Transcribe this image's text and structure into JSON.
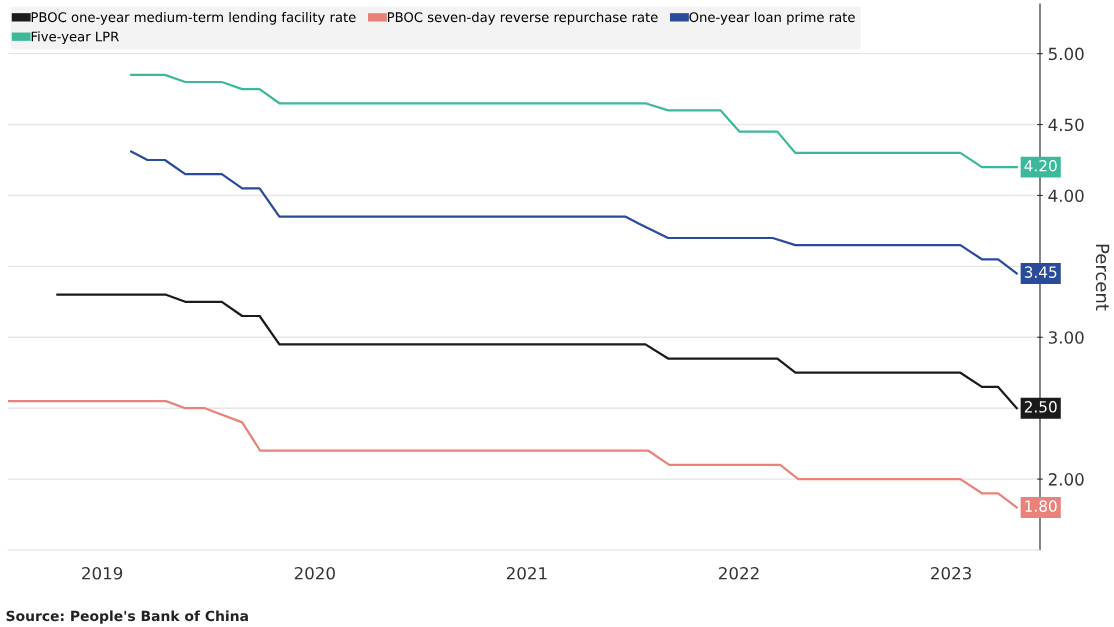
{
  "chart_data": {
    "type": "line",
    "ylabel": "Percent",
    "annotations": [
      "Source: People's Bank of China"
    ],
    "xlim": [
      "2019-01-20",
      "2023-12-01"
    ],
    "xticks": [
      {
        "value": "2019-07-01",
        "label": "2019"
      },
      {
        "value": "2020-07-01",
        "label": "2020"
      },
      {
        "value": "2021-07-01",
        "label": "2021"
      },
      {
        "value": "2022-07-01",
        "label": "2022"
      },
      {
        "value": "2023-07-01",
        "label": "2023"
      }
    ],
    "ylim": [
      1.5,
      5.35
    ],
    "yticks": [
      {
        "value": 2,
        "label": "2.00"
      },
      {
        "value": 2.5,
        "label": null
      },
      {
        "value": 3,
        "label": "3.00"
      },
      {
        "value": 3.5,
        "label": null
      },
      {
        "value": 4,
        "label": "4.00"
      },
      {
        "value": 4.5,
        "label": "4.50"
      },
      {
        "value": 5,
        "label": "5.00"
      }
    ],
    "grid": "y",
    "legend": "top left",
    "marker": "none",
    "line_style": "solid",
    "series": [
      {
        "name": "PBOC one-year medium-term lending facility rate",
        "color": "#1a1a1a",
        "x": [
          "2019-04-15",
          "2019-10-19",
          "2019-11-21",
          "2020-01-23",
          "2020-02-27",
          "2020-03-28",
          "2020-05-01",
          "2022-01-21",
          "2022-03-01",
          "2022-09-05",
          "2022-10-06",
          "2023-07-17",
          "2023-08-23",
          "2023-09-20",
          "2023-10-22"
        ],
        "values": [
          3.3,
          3.3,
          3.25,
          3.25,
          3.15,
          3.15,
          2.95,
          2.95,
          2.85,
          2.85,
          2.75,
          2.75,
          2.65,
          2.65,
          2.5
        ],
        "value_labels": [
          null,
          null,
          null,
          null,
          null,
          null,
          null,
          null,
          null,
          null,
          null,
          null,
          null,
          null,
          "2.50"
        ]
      },
      {
        "name": "PBOC seven-day reverse repurchase rate",
        "color": "#e8827a",
        "x": [
          "2019-01-20",
          "2019-10-19",
          "2019-11-21",
          "2019-12-25",
          "2020-02-27",
          "2020-03-29",
          "2022-01-26",
          "2022-03-03",
          "2022-09-10",
          "2022-10-11",
          "2023-07-17",
          "2023-08-23",
          "2023-09-20",
          "2023-10-22"
        ],
        "values": [
          2.55,
          2.55,
          2.5,
          2.5,
          2.4,
          2.2,
          2.2,
          2.1,
          2.1,
          2.0,
          2.0,
          1.9,
          1.9,
          1.8
        ],
        "value_labels": [
          null,
          null,
          null,
          null,
          null,
          null,
          null,
          null,
          null,
          null,
          null,
          null,
          null,
          "1.80"
        ]
      },
      {
        "name": "One-year loan prime rate",
        "color": "#2a4a9a",
        "x": [
          "2019-08-20",
          "2019-09-17",
          "2019-10-17",
          "2019-11-21",
          "2020-01-23",
          "2020-02-27",
          "2020-03-28",
          "2020-05-01",
          "2021-12-18",
          "2022-01-10",
          "2022-03-01",
          "2022-08-28",
          "2022-10-06",
          "2023-07-17",
          "2023-08-23",
          "2023-09-20",
          "2023-10-22"
        ],
        "values": [
          4.31,
          4.25,
          4.25,
          4.15,
          4.15,
          4.05,
          4.05,
          3.85,
          3.85,
          3.8,
          3.7,
          3.7,
          3.65,
          3.65,
          3.55,
          3.55,
          3.45
        ],
        "value_labels": [
          null,
          null,
          null,
          null,
          null,
          null,
          null,
          null,
          null,
          null,
          null,
          null,
          null,
          null,
          null,
          null,
          "3.45"
        ]
      },
      {
        "name": "Five-year LPR",
        "color": "#3cb89a",
        "x": [
          "2019-08-20",
          "2019-10-17",
          "2019-11-21",
          "2020-01-23",
          "2020-02-27",
          "2020-03-28",
          "2020-05-01",
          "2022-01-21",
          "2022-03-01",
          "2022-05-30",
          "2022-07-02",
          "2022-09-05",
          "2022-10-06",
          "2023-07-17",
          "2023-08-23",
          "2023-10-22"
        ],
        "values": [
          4.85,
          4.85,
          4.8,
          4.8,
          4.75,
          4.75,
          4.65,
          4.65,
          4.6,
          4.6,
          4.45,
          4.45,
          4.3,
          4.3,
          4.2,
          4.2
        ],
        "value_labels": [
          null,
          null,
          null,
          null,
          null,
          null,
          null,
          null,
          null,
          null,
          null,
          null,
          null,
          null,
          null,
          "4.20"
        ]
      }
    ]
  }
}
